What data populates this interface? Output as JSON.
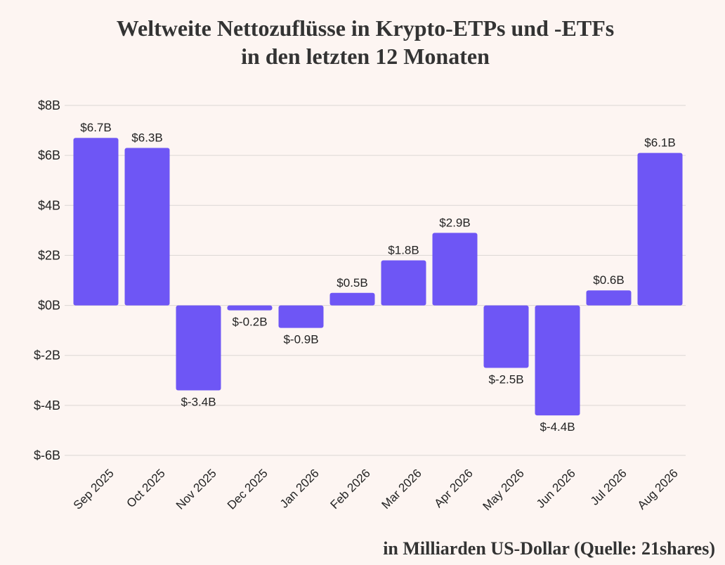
{
  "title_line1": "Weltweite Nettozuflüsse in Krypto-ETPs und -ETFs",
  "title_line2": "in den letzten 12 Monaten",
  "footnote": "in Milliarden US-Dollar (Quelle: 21shares)",
  "colors": {
    "background": "#fdf5f2",
    "bar": "#6e56f5",
    "grid": "#dcd6d4",
    "text": "#222222"
  },
  "chart_data": {
    "type": "bar",
    "categories": [
      "Sep 2025",
      "Oct 2025",
      "Nov 2025",
      "Dec 2025",
      "Jan 2026",
      "Feb 2026",
      "Mar 2026",
      "Apr 2026",
      "May 2026",
      "Jun 2026",
      "Jul 2026",
      "Aug 2026"
    ],
    "values": [
      6.7,
      6.3,
      -3.4,
      -0.2,
      -0.9,
      0.5,
      1.8,
      2.9,
      -2.5,
      -4.4,
      0.6,
      6.1
    ],
    "data_labels": [
      "$6.7B",
      "$6.3B",
      "$-3.4B",
      "$-0.2B",
      "$-0.9B",
      "$0.5B",
      "$1.8B",
      "$2.9B",
      "$-2.5B",
      "$-4.4B",
      "$0.6B",
      "$6.1B"
    ],
    "ylim": [
      -6,
      8
    ],
    "yticks": [
      8,
      6,
      4,
      2,
      0,
      -2,
      -4,
      -6
    ],
    "ytick_labels": [
      "$8B",
      "$6B",
      "$4B",
      "$2B",
      "$0B",
      "$-2B",
      "$-4B",
      "$-6B"
    ],
    "grid": true,
    "legend": false
  }
}
